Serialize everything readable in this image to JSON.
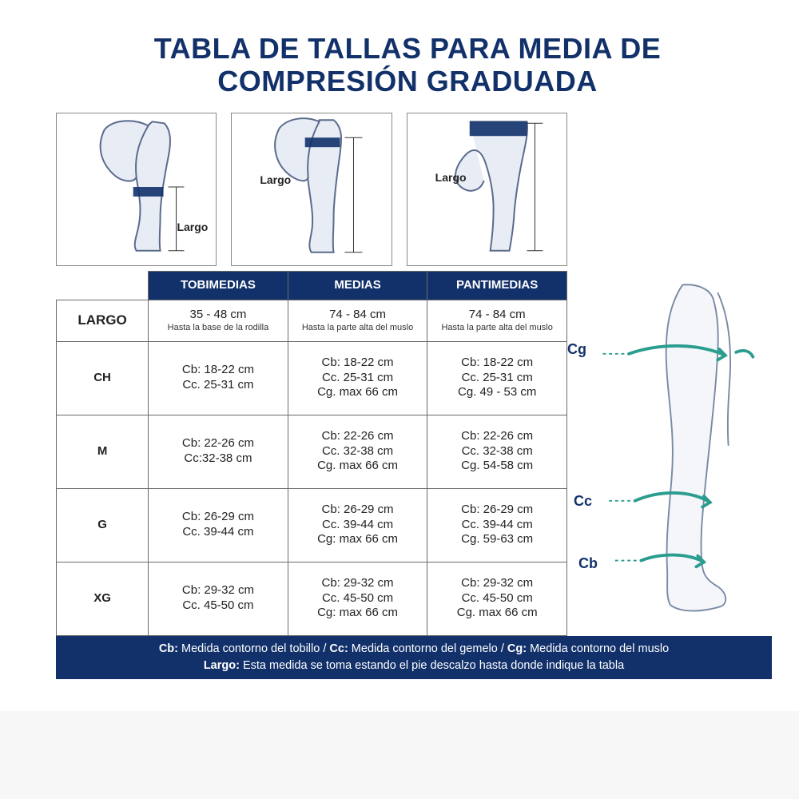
{
  "colors": {
    "brand_navy": "#12316a",
    "border_gray": "#6a6a6a",
    "text": "#222222",
    "bg": "#ffffff",
    "teal_arrow": "#2a9d8f",
    "leg_line": "#5a6b8c",
    "leg_fill": "#e8edf5"
  },
  "title": "TABLA DE TALLAS PARA MEDIA DE COMPRESIÓN GRADUADA",
  "illus_label": "Largo",
  "columns": [
    "TOBIMEDIAS",
    "MEDIAS",
    "PANTIMEDIAS"
  ],
  "largo_label": "LARGO",
  "largo_row": [
    {
      "main": "35 - 48 cm",
      "sub": "Hasta la base de la rodilla"
    },
    {
      "main": "74 - 84 cm",
      "sub": "Hasta la parte alta del muslo"
    },
    {
      "main": "74 - 84 cm",
      "sub": "Hasta la parte alta del muslo"
    }
  ],
  "sizes": [
    {
      "label": "CH",
      "cells": [
        [
          "Cb: 18-22 cm",
          "Cc. 25-31 cm"
        ],
        [
          "Cb: 18-22 cm",
          "Cc. 25-31 cm",
          "Cg. max 66 cm"
        ],
        [
          "Cb: 18-22 cm",
          "Cc. 25-31 cm",
          "Cg. 49 - 53 cm"
        ]
      ]
    },
    {
      "label": "M",
      "cells": [
        [
          "Cb: 22-26 cm",
          "Cc:32-38 cm"
        ],
        [
          "Cb: 22-26 cm",
          "Cc. 32-38 cm",
          "Cg. max 66 cm"
        ],
        [
          "Cb: 22-26 cm",
          "Cc. 32-38 cm",
          "Cg. 54-58 cm"
        ]
      ]
    },
    {
      "label": "G",
      "cells": [
        [
          "Cb: 26-29 cm",
          "Cc. 39-44 cm"
        ],
        [
          "Cb: 26-29 cm",
          "Cc. 39-44 cm",
          "Cg: max 66 cm"
        ],
        [
          "Cb: 26-29 cm",
          "Cc. 39-44 cm",
          "Cg. 59-63 cm"
        ]
      ]
    },
    {
      "label": "XG",
      "cells": [
        [
          "Cb: 29-32 cm",
          "Cc. 45-50 cm"
        ],
        [
          "Cb: 29-32 cm",
          "Cc. 45-50 cm",
          "Cg: max 66 cm"
        ],
        [
          "Cb: 29-32 cm",
          "Cc. 45-50 cm",
          "Cg. max 66 cm"
        ]
      ]
    }
  ],
  "side_labels": {
    "cg": "Cg",
    "cc": "Cc",
    "cb": "Cb"
  },
  "footer": {
    "line1_parts": [
      {
        "b": "Cb:",
        "t": " Medida contorno del tobillo / "
      },
      {
        "b": "Cc:",
        "t": " Medida contorno del gemelo / "
      },
      {
        "b": "Cg:",
        "t": " Medida contorno del muslo"
      }
    ],
    "line2_b": "Largo:",
    "line2_t": " Esta medida se toma estando el pie descalzo hasta donde indique la tabla"
  },
  "col_widths": [
    "18%",
    "27.3%",
    "27.3%",
    "27.3%"
  ],
  "size_row_height": 92,
  "largo_row_height": 52
}
